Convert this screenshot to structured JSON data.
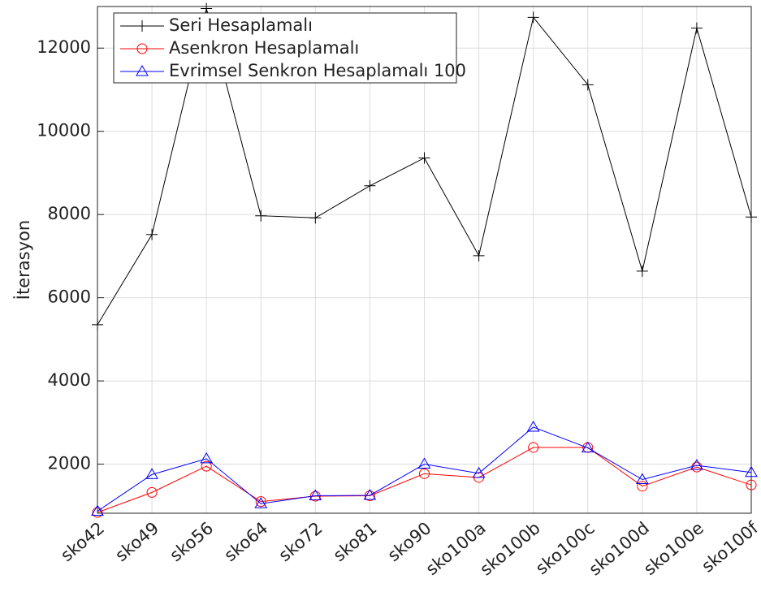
{
  "chart_data": {
    "type": "line",
    "y_label": "İterasyon",
    "categories": [
      "sko42",
      "sko49",
      "sko56",
      "sko64",
      "sko72",
      "sko81",
      "sko90",
      "sko100a",
      "sko100b",
      "sko100c",
      "sko100d",
      "sko100e",
      "sko100f"
    ],
    "series": [
      {
        "name": "Seri Hesaplamalı",
        "color": "#000000",
        "marker": "plus",
        "values": [
          5350,
          7520,
          12950,
          7970,
          7920,
          8690,
          9360,
          7010,
          12740,
          11120,
          6640,
          12480,
          7940
        ]
      },
      {
        "name": "Asenkron Hesaplamalı",
        "color": "#ff0000",
        "marker": "circle",
        "values": [
          840,
          1320,
          1950,
          1100,
          1230,
          1240,
          1770,
          1680,
          2400,
          2400,
          1470,
          1930,
          1500
        ]
      },
      {
        "name": "Evrimsel Senkron Hesaplamalı 100",
        "color": "#0000ff",
        "marker": "triangle",
        "values": [
          870,
          1750,
          2130,
          1050,
          1240,
          1250,
          2000,
          1780,
          2890,
          2390,
          1630,
          1970,
          1800
        ]
      }
    ],
    "ylim": [
      820,
      13000
    ],
    "yticks": [
      2000,
      4000,
      6000,
      8000,
      10000,
      12000
    ],
    "grid": true,
    "legend": "upper-left"
  }
}
